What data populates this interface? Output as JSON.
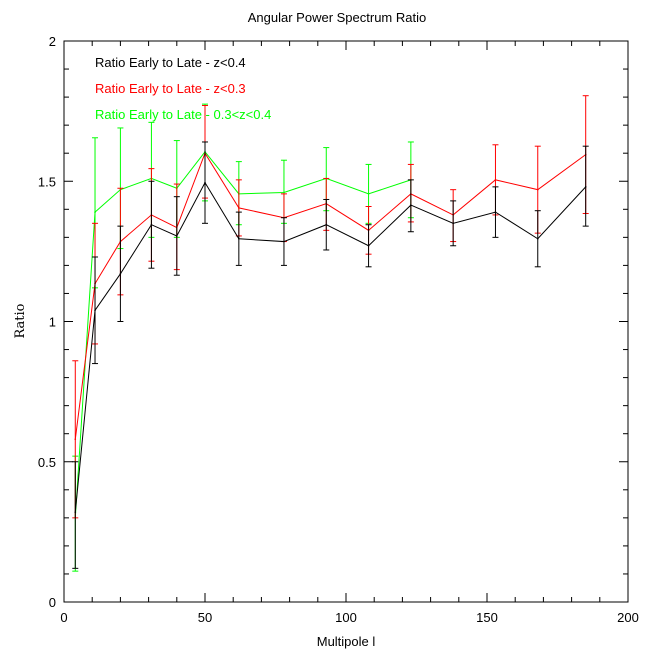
{
  "chart_data": {
    "type": "line",
    "title": "Angular Power Spectrum Ratio",
    "xlabel": "Multipole l",
    "ylabel": "Ratio",
    "xlim": [
      0,
      200
    ],
    "ylim": [
      0,
      2
    ],
    "x_ticks": [
      0,
      50,
      100,
      150,
      200
    ],
    "y_ticks": [
      0,
      0.5,
      1,
      1.5,
      2
    ],
    "x_tick_labels": [
      "0",
      "50",
      "100",
      "150",
      "200"
    ],
    "y_tick_labels": [
      "0",
      "0.5",
      "1",
      "1.5",
      "2"
    ],
    "grid": false,
    "legend_position": "top-left",
    "series": [
      {
        "name": "Ratio Early to Late - z<0.4",
        "color": "#000000",
        "points": [
          {
            "x": 4,
            "y": 0.32,
            "low": 0.12,
            "high": 0.5
          },
          {
            "x": 11,
            "y": 1.04,
            "low": 0.85,
            "high": 1.23
          },
          {
            "x": 20,
            "y": 1.17,
            "low": 1.0,
            "high": 1.34
          },
          {
            "x": 31,
            "y": 1.345,
            "low": 1.19,
            "high": 1.5
          },
          {
            "x": 40,
            "y": 1.305,
            "low": 1.165,
            "high": 1.445
          },
          {
            "x": 50,
            "y": 1.495,
            "low": 1.35,
            "high": 1.64
          },
          {
            "x": 62,
            "y": 1.295,
            "low": 1.2,
            "high": 1.39
          },
          {
            "x": 78,
            "y": 1.285,
            "low": 1.2,
            "high": 1.37
          },
          {
            "x": 93,
            "y": 1.345,
            "low": 1.255,
            "high": 1.435
          },
          {
            "x": 108,
            "y": 1.27,
            "low": 1.195,
            "high": 1.345
          },
          {
            "x": 123,
            "y": 1.415,
            "low": 1.32,
            "high": 1.505
          },
          {
            "x": 138,
            "y": 1.35,
            "low": 1.27,
            "high": 1.43
          },
          {
            "x": 153,
            "y": 1.39,
            "low": 1.3,
            "high": 1.48
          },
          {
            "x": 168,
            "y": 1.295,
            "low": 1.195,
            "high": 1.395
          },
          {
            "x": 185,
            "y": 1.48,
            "low": 1.34,
            "high": 1.625
          }
        ]
      },
      {
        "name": "Ratio Early to Late - z<0.3",
        "color": "#ff0000",
        "points": [
          {
            "x": 4,
            "y": 0.58,
            "low": 0.3,
            "high": 0.86
          },
          {
            "x": 11,
            "y": 1.135,
            "low": 0.92,
            "high": 1.35
          },
          {
            "x": 20,
            "y": 1.285,
            "low": 1.095,
            "high": 1.475
          },
          {
            "x": 31,
            "y": 1.38,
            "low": 1.215,
            "high": 1.545
          },
          {
            "x": 40,
            "y": 1.335,
            "low": 1.185,
            "high": 1.49
          },
          {
            "x": 50,
            "y": 1.6,
            "low": 1.44,
            "high": 1.77
          },
          {
            "x": 62,
            "y": 1.405,
            "low": 1.305,
            "high": 1.505
          },
          {
            "x": 78,
            "y": 1.37,
            "low": 1.285,
            "high": 1.455
          },
          {
            "x": 93,
            "y": 1.42,
            "low": 1.325,
            "high": 1.51
          },
          {
            "x": 108,
            "y": 1.325,
            "low": 1.24,
            "high": 1.41
          },
          {
            "x": 123,
            "y": 1.455,
            "low": 1.355,
            "high": 1.56
          },
          {
            "x": 138,
            "y": 1.38,
            "low": 1.285,
            "high": 1.47
          },
          {
            "x": 153,
            "y": 1.505,
            "low": 1.38,
            "high": 1.63
          },
          {
            "x": 168,
            "y": 1.47,
            "low": 1.315,
            "high": 1.625
          },
          {
            "x": 185,
            "y": 1.595,
            "low": 1.385,
            "high": 1.805
          }
        ]
      },
      {
        "name": "Ratio Early to Late - 0.3<z<0.4",
        "color": "#00ff00",
        "points": [
          {
            "x": 4,
            "y": 0.3,
            "low": 0.11,
            "high": 0.52
          },
          {
            "x": 11,
            "y": 1.39,
            "low": 1.12,
            "high": 1.655
          },
          {
            "x": 20,
            "y": 1.47,
            "low": 1.26,
            "high": 1.69
          },
          {
            "x": 31,
            "y": 1.51,
            "low": 1.3,
            "high": 1.71
          },
          {
            "x": 40,
            "y": 1.475,
            "low": 1.3,
            "high": 1.645
          },
          {
            "x": 50,
            "y": 1.605,
            "low": 1.43,
            "high": 1.775
          },
          {
            "x": 62,
            "y": 1.455,
            "low": 1.345,
            "high": 1.57
          },
          {
            "x": 78,
            "y": 1.46,
            "low": 1.35,
            "high": 1.575
          },
          {
            "x": 93,
            "y": 1.51,
            "low": 1.395,
            "high": 1.62
          },
          {
            "x": 108,
            "y": 1.455,
            "low": 1.35,
            "high": 1.56
          },
          {
            "x": 123,
            "y": 1.505,
            "low": 1.37,
            "high": 1.64
          }
        ]
      }
    ]
  }
}
